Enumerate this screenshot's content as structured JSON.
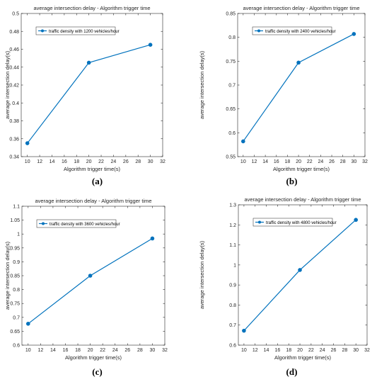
{
  "chart_data": [
    {
      "type": "line",
      "title": "average intersection delay - Algorithm trigger time",
      "xlabel": "Algorithm trigger time(s)",
      "ylabel": "average intersection delay(s)",
      "xlim": [
        9,
        32
      ],
      "ylim": [
        0.34,
        0.5
      ],
      "xticks": [
        10,
        12,
        14,
        16,
        18,
        20,
        22,
        24,
        26,
        28,
        30,
        32
      ],
      "yticks": [
        0.34,
        0.36,
        0.38,
        0.4,
        0.42,
        0.44,
        0.46,
        0.48,
        0.5
      ],
      "ytick_labels": [
        "0.34",
        "0.36",
        "0.38",
        "0.4",
        "0.42",
        "0.44",
        "0.46",
        "0.48",
        "0.5"
      ],
      "series": [
        {
          "name": "traffic density with 1200 vehicles/hour",
          "x": [
            10,
            20,
            30
          ],
          "y": [
            0.355,
            0.445,
            0.465
          ]
        }
      ],
      "legend": "top-left",
      "color": "#0072BD",
      "caption": "(a)"
    },
    {
      "type": "line",
      "title": "average intersection delay - Algorithm trigger time",
      "xlabel": "Algorithm trigger time(s)",
      "ylabel": "average intersection delay(s)",
      "xlim": [
        9,
        32
      ],
      "ylim": [
        0.55,
        0.85
      ],
      "xticks": [
        10,
        12,
        14,
        16,
        18,
        20,
        22,
        24,
        26,
        28,
        30,
        32
      ],
      "yticks": [
        0.55,
        0.6,
        0.65,
        0.7,
        0.75,
        0.8,
        0.85
      ],
      "ytick_labels": [
        "0.55",
        "0.6",
        "0.65",
        "0.7",
        "0.75",
        "0.8",
        "0.85"
      ],
      "series": [
        {
          "name": "traffic density with 2400 vehicles/hour",
          "x": [
            10,
            20,
            30
          ],
          "y": [
            0.582,
            0.747,
            0.807
          ]
        }
      ],
      "legend": "top-left",
      "color": "#0072BD",
      "caption": "(b)"
    },
    {
      "type": "line",
      "title": "average intersection delay - Algorithm trigger time",
      "xlabel": "Algorithm trigger time(s)",
      "ylabel": "average intersection delay(s)",
      "xlim": [
        9,
        32
      ],
      "ylim": [
        0.6,
        1.1
      ],
      "xticks": [
        10,
        12,
        14,
        16,
        18,
        20,
        22,
        24,
        26,
        28,
        30,
        32
      ],
      "yticks": [
        0.6,
        0.65,
        0.7,
        0.75,
        0.8,
        0.85,
        0.9,
        0.95,
        1.0,
        1.05,
        1.1
      ],
      "ytick_labels": [
        "0.6",
        "0.65",
        "0.7",
        "0.75",
        "0.8",
        "0.85",
        "0.9",
        "0.95",
        "1",
        "1.05",
        "1.1"
      ],
      "series": [
        {
          "name": "traffic density with 3600 vehicles/hour",
          "x": [
            10,
            20,
            30
          ],
          "y": [
            0.677,
            0.85,
            0.984
          ]
        }
      ],
      "legend": "top-left",
      "color": "#0072BD",
      "caption": "(c)"
    },
    {
      "type": "line",
      "title": "average intersection delay - Algorithm trigger time",
      "xlabel": "Algorithm trigger time(s)",
      "ylabel": "average intersection delay(s)",
      "xlim": [
        9,
        32
      ],
      "ylim": [
        0.6,
        1.3
      ],
      "xticks": [
        10,
        12,
        14,
        16,
        18,
        20,
        22,
        24,
        26,
        28,
        30,
        32
      ],
      "yticks": [
        0.6,
        0.7,
        0.8,
        0.9,
        1.0,
        1.1,
        1.2,
        1.3
      ],
      "ytick_labels": [
        "0.6",
        "0.7",
        "0.8",
        "0.9",
        "1",
        "1.1",
        "1.2",
        "1.3"
      ],
      "series": [
        {
          "name": "traffic density with 4800 vehicles/hour",
          "x": [
            10,
            20,
            30
          ],
          "y": [
            0.672,
            0.975,
            1.225
          ]
        }
      ],
      "legend": "top-left",
      "color": "#0072BD",
      "caption": "(d)"
    }
  ]
}
